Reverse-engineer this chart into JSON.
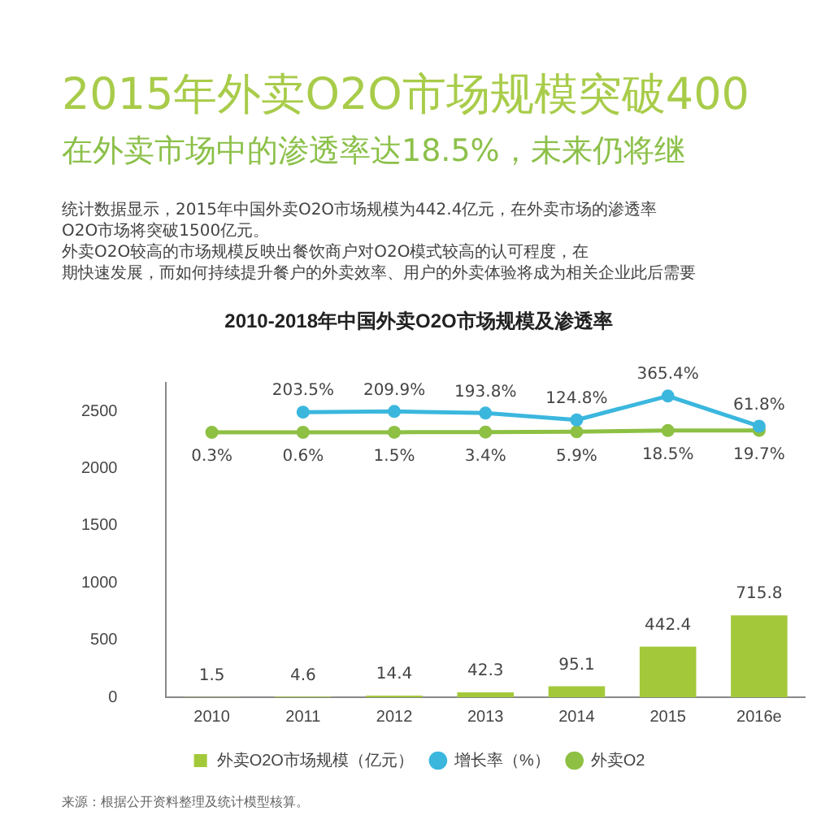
{
  "chart_data": {
    "type": "bar",
    "title": "2010-2018年中国外卖O2O市场规模及渗透率",
    "annotations": [
      "2015年外卖O2O市场规模突破400",
      "在外卖市场中的渗透率达18.5%，未来仍将继",
      "统计数据显示，2015年中国外卖O2O市场规模为442.4亿元，在外卖市场的渗透率",
      "O2O市场将突破1500亿元。",
      "外卖O2O较高的市场规模反映出餐饮商户对O2O模式较高的认可程度，在",
      "期快速发展，而如何持续提升餐户的外卖效率、用户的外卖体验将成为相关企业此后需要",
      "来源：根据公开资料整理及统计模型核算。"
    ],
    "categories": [
      "2010",
      "2011",
      "2012",
      "2013",
      "2014",
      "2015",
      "2016e"
    ],
    "series": [
      {
        "name": "外卖O2O市场规模（亿元）",
        "color": "#a3c93a",
        "values": [
          1.5,
          4.6,
          14.4,
          42.3,
          95.1,
          442.4,
          715.8
        ],
        "value_labels": [
          "1.5",
          "4.6",
          "14.4",
          "42.3",
          "95.1",
          "442.4",
          "715.8"
        ]
      },
      {
        "name": "增长率（%）",
        "type": "line",
        "axis": "y2",
        "color": "#3bb7de",
        "values": [
          null,
          203.5,
          209.9,
          193.8,
          124.8,
          365.4,
          61.8
        ],
        "value_labels": [
          null,
          "203.5%",
          "209.9%",
          "193.8%",
          "124.8%",
          "365.4%",
          "61.8%"
        ]
      },
      {
        "name": "外卖O2",
        "type": "line",
        "axis": "y2",
        "color": "#8dc043",
        "values": [
          0.3,
          0.6,
          1.5,
          3.4,
          5.9,
          18.5,
          19.7
        ],
        "value_labels": [
          "0.3%",
          "0.6%",
          "1.5%",
          "3.4%",
          "5.9%",
          "18.5%",
          "19.7%"
        ]
      }
    ],
    "ylim": [
      0,
      2750
    ],
    "yticks": [
      0,
      500,
      1000,
      1500,
      2000,
      2500
    ],
    "y2lim": [
      -2660,
      500
    ],
    "grid": false,
    "legend": "bottom",
    "marker": "circle",
    "line_style": "solid"
  }
}
